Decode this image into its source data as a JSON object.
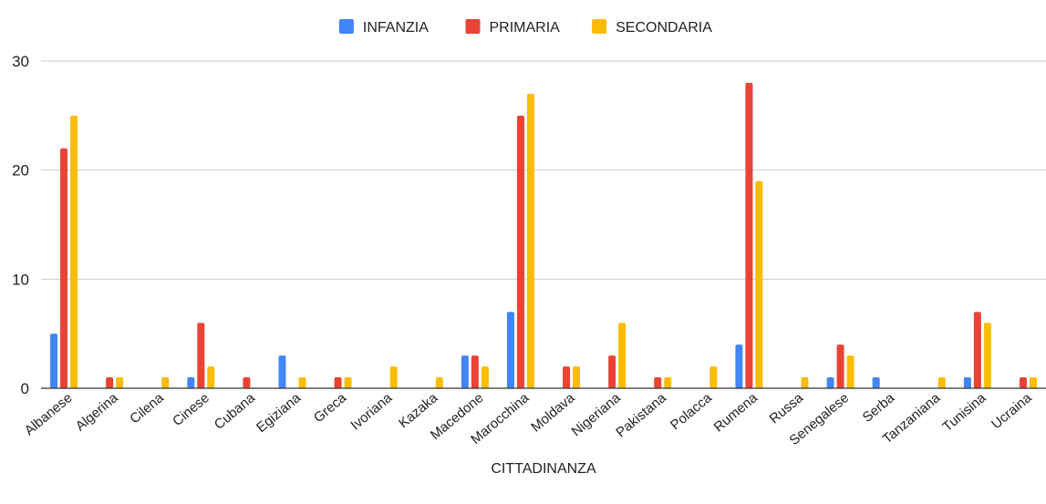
{
  "chart_data": {
    "type": "bar",
    "title": "",
    "xlabel": "CITTADINANZA",
    "ylabel": "",
    "ylim": [
      0,
      30
    ],
    "yticks": [
      0,
      10,
      20,
      30
    ],
    "grid": "horizontal",
    "legend_position": "top",
    "categories": [
      "Albanese",
      "Algerina",
      "Cilena",
      "Cinese",
      "Cubana",
      "Egiziana",
      "Greca",
      "Ivoriana",
      "Kazaka",
      "Macedone",
      "Marocchina",
      "Moldava",
      "Nigeriana",
      "Pakistana",
      "Polacca",
      "Rumena",
      "Russa",
      "Senegalese",
      "Serba",
      "Tanzaniana",
      "Tunisina",
      "Ucraina"
    ],
    "series": [
      {
        "name": "INFANZIA",
        "color": "#4285f4",
        "values": [
          5,
          0,
          0,
          1,
          0,
          3,
          0,
          0,
          0,
          3,
          7,
          0,
          0,
          0,
          0,
          4,
          0,
          1,
          1,
          0,
          1,
          0
        ]
      },
      {
        "name": "PRIMARIA",
        "color": "#ea4335",
        "values": [
          22,
          1,
          0,
          6,
          1,
          0,
          1,
          0,
          0,
          3,
          25,
          2,
          3,
          1,
          0,
          28,
          0,
          4,
          0,
          0,
          7,
          1
        ]
      },
      {
        "name": "SECONDARIA",
        "color": "#fbbc04",
        "values": [
          25,
          1,
          1,
          2,
          0,
          1,
          1,
          2,
          1,
          2,
          27,
          2,
          6,
          1,
          2,
          19,
          1,
          3,
          0,
          1,
          6,
          1
        ]
      }
    ]
  }
}
